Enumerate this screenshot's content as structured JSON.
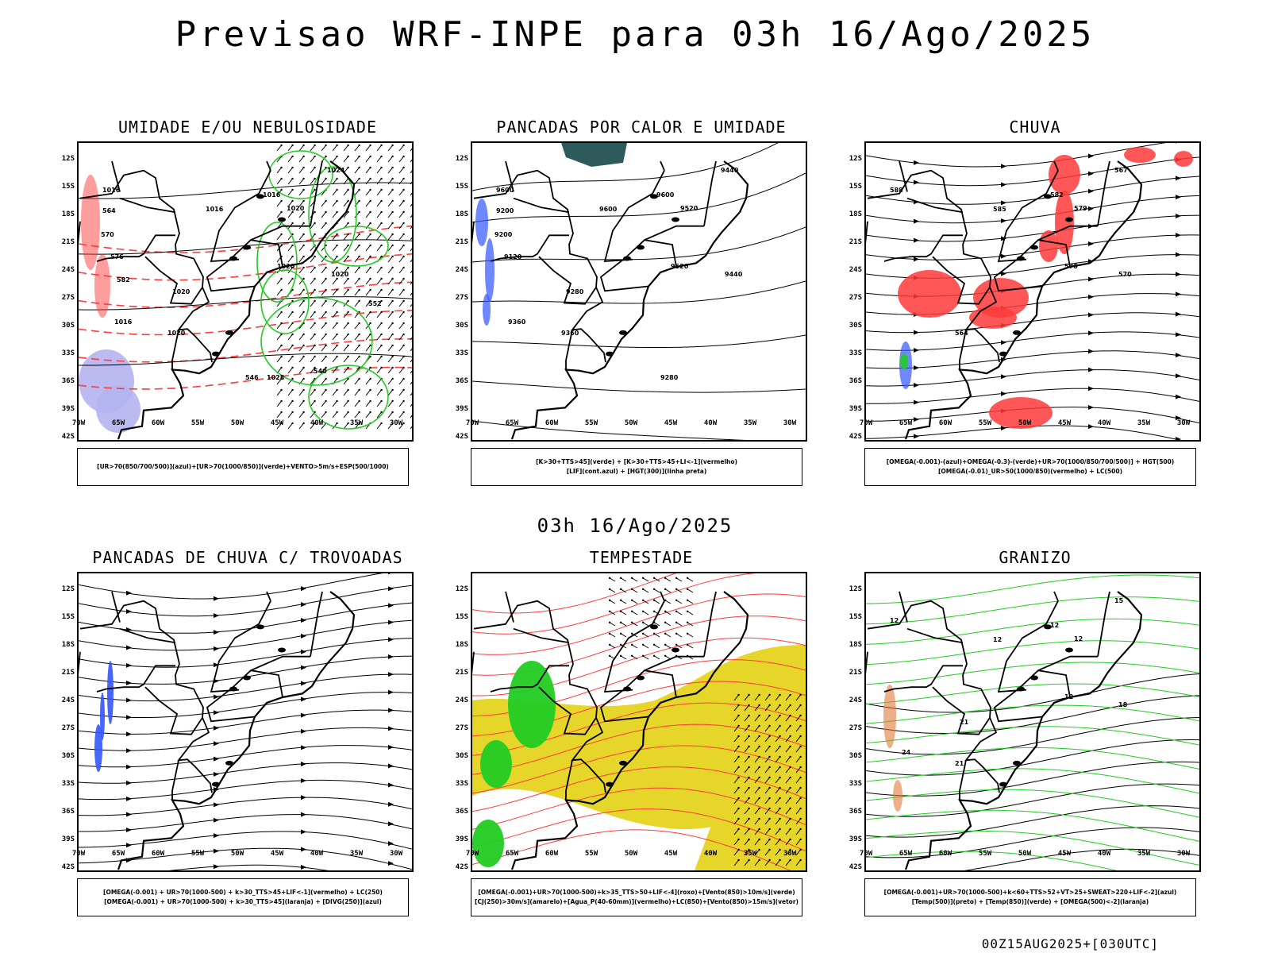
{
  "title": "Previsao WRF-INPE  para 03h 16/Ago/2025",
  "subtitle": "03h 16/Ago/2025",
  "footer": "00Z15AUG2025+[030UTC]",
  "axes": {
    "lat_labels": [
      "12S",
      "15S",
      "18S",
      "21S",
      "24S",
      "27S",
      "30S",
      "33S",
      "36S",
      "39S",
      "42S"
    ],
    "lon_labels": [
      "70W",
      "65W",
      "60W",
      "55W",
      "50W",
      "45W",
      "40W",
      "35W",
      "30W"
    ]
  },
  "colors": {
    "green": "#22cc22",
    "red": "#ff3a3a",
    "blue": "#3355ff",
    "lavender": "#b4b4f0",
    "yellow": "#e6d62a",
    "teal": "#2d5a5a",
    "black": "#000000"
  },
  "panels": [
    {
      "title": "UMIDADE E/OU NEBULOSIDADE",
      "legend": [
        "[UR>70(850/700/500)](azul)+[UR>70(1000/850)](verde)+VENTO>5m/s+ESP(500/1000)"
      ],
      "contour_labels": [
        "1016",
        "1016",
        "1016",
        "1020",
        "1020",
        "1020",
        "1024",
        "1020",
        "1016",
        "1020",
        "1028",
        "564",
        "570",
        "576",
        "582",
        "552",
        "546",
        "540"
      ]
    },
    {
      "title": "PANCADAS POR CALOR E UMIDADE",
      "legend": [
        "[K>30+TTS>45](verde) + [K>30+TTS>45+LI<-1](vermelho)",
        "[LIF](cont.azul) + [HGT(300)](linha preta)"
      ],
      "contour_labels": [
        "9600",
        "9600",
        "9600",
        "9520",
        "9520",
        "9440",
        "9440",
        "9360",
        "9360",
        "9280",
        "9280",
        "9200",
        "9200",
        "9120"
      ]
    },
    {
      "title": "CHUVA",
      "legend": [
        "[OMEGA(-0.001)-(azul)+OMEGA(-0.3)-(verde)+UR>70(1000/850/700/500)] + HGT(500)",
        "[OMEGA(-0.01)_UR>50(1000/850)(vermelho) + LC(500)"
      ],
      "contour_labels": [
        "588",
        "585",
        "582",
        "579",
        "576",
        "570",
        "567",
        "564"
      ]
    },
    {
      "title": "PANCADAS DE CHUVA C/ TROVOADAS",
      "legend": [
        "[OMEGA(-0.001) + UR>70(1000-500) + k>30_TTS>45+LIF<-1](vermelho) + LC(250)",
        "[OMEGA(-0.001) + UR>70(1000-500) + k>30_TTS>45](laranja) + [DIVG(250)](azul)"
      ],
      "contour_labels": []
    },
    {
      "title": "TEMPESTADE",
      "legend": [
        "[OMEGA(-0.001)+UR>70(1000-500)+k>35_TTS>50+LIF<-4](roxo)+[Vento(850)>10m/s](verde)",
        "[CJ(250)>30m/s](amarelo)+[Agua_P(40-60mm)](vermelho)+LC(850)+[Vento(850)>15m/s](vetor)"
      ],
      "contour_labels": []
    },
    {
      "title": "GRANIZO",
      "legend": [
        "[OMEGA(-0.001)+UR>70(1000-500)+k<60+TTS>52+VT>25+SWEAT>220+LIF<-2](azul)",
        "[Temp(500)](preto) + [Temp(850)](verde) + [OMEGA(500)<-2](laranja)"
      ],
      "contour_labels": [
        "12",
        "12",
        "12",
        "12",
        "12",
        "18",
        "15",
        "21",
        "24",
        "21"
      ]
    }
  ]
}
